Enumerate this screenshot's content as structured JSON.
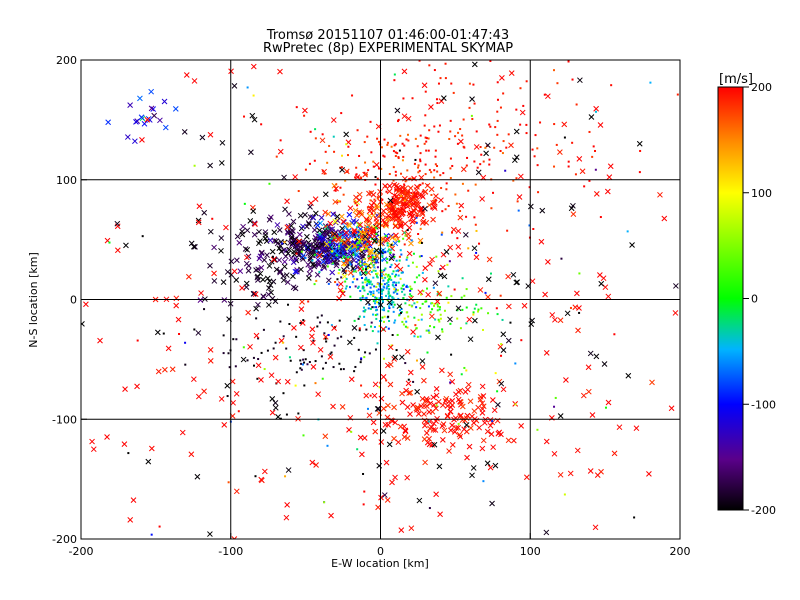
{
  "chart_data": {
    "type": "scatter",
    "title": "Tromsø 20151107 01:46:00-01:47:43",
    "subtitle": "RwPretec (8p) EXPERIMENTAL SKYMAP",
    "xlabel": "E-W location [km]",
    "ylabel": "N-S location [km]",
    "xlim": [
      -200,
      200
    ],
    "ylim": [
      -200,
      200
    ],
    "x_ticks": [
      "-200",
      "-100",
      "0",
      "100",
      "200"
    ],
    "y_ticks": [
      "-200",
      "-100",
      "0",
      "100",
      "200"
    ],
    "grid": true,
    "marker_types": [
      "x",
      "dot"
    ],
    "colorbar": {
      "label": "[m/s]",
      "range": [
        -200,
        200
      ],
      "ticks": [
        "200",
        "100",
        "0",
        "-100",
        "-200"
      ],
      "colormap": [
        "#000000",
        "#5a008a",
        "#0000ff",
        "#00b4ff",
        "#00ff00",
        "#ffff00",
        "#ff8c00",
        "#ff0000"
      ]
    },
    "clusters": [
      {
        "center": [
          -45,
          45
        ],
        "spread": [
          18,
          12
        ],
        "count": 260,
        "velocity": -180,
        "vel_spread": 25,
        "marker": "x"
      },
      {
        "center": [
          -25,
          45
        ],
        "spread": [
          14,
          10
        ],
        "count": 150,
        "velocity": -120,
        "vel_spread": 50,
        "marker": "x"
      },
      {
        "center": [
          -10,
          55
        ],
        "spread": [
          14,
          14
        ],
        "count": 110,
        "velocity": 160,
        "vel_spread": 40,
        "marker": "x"
      },
      {
        "center": [
          15,
          80
        ],
        "spread": [
          12,
          10
        ],
        "count": 150,
        "velocity": 195,
        "vel_spread": 10,
        "marker": "x"
      },
      {
        "center": [
          15,
          100
        ],
        "spread": [
          28,
          22
        ],
        "count": 180,
        "velocity": 185,
        "vel_spread": 20,
        "marker": "dot"
      },
      {
        "center": [
          0,
          5
        ],
        "spread": [
          10,
          14
        ],
        "count": 200,
        "velocity": -50,
        "vel_spread": 20,
        "marker": "dot"
      },
      {
        "center": [
          -5,
          30
        ],
        "spread": [
          20,
          14
        ],
        "count": 180,
        "velocity": 0,
        "vel_spread": 70,
        "marker": "dot"
      },
      {
        "center": [
          30,
          -10
        ],
        "spread": [
          20,
          12
        ],
        "count": 100,
        "velocity": 30,
        "vel_spread": 40,
        "marker": "dot"
      },
      {
        "center": [
          40,
          -95
        ],
        "spread": [
          30,
          15
        ],
        "count": 150,
        "velocity": 195,
        "vel_spread": 10,
        "marker": "x"
      },
      {
        "center": [
          60,
          140
        ],
        "spread": [
          50,
          35
        ],
        "count": 160,
        "velocity": 195,
        "vel_spread": 10,
        "marker": "dot"
      },
      {
        "center": [
          -50,
          -40
        ],
        "spread": [
          30,
          20
        ],
        "count": 90,
        "velocity": -195,
        "vel_spread": 10,
        "marker": "dot"
      },
      {
        "center": [
          -160,
          150
        ],
        "spread": [
          12,
          12
        ],
        "count": 20,
        "velocity": -100,
        "vel_spread": 30,
        "marker": "x"
      },
      {
        "center": [
          -90,
          20
        ],
        "spread": [
          15,
          20
        ],
        "count": 60,
        "velocity": -190,
        "vel_spread": 15,
        "marker": "x"
      },
      {
        "center": [
          0,
          0
        ],
        "spread": [
          110,
          110
        ],
        "count": 320,
        "velocity": 200,
        "vel_spread": 8,
        "marker": "x"
      },
      {
        "center": [
          0,
          0
        ],
        "spread": [
          110,
          110
        ],
        "count": 140,
        "velocity": -200,
        "vel_spread": 8,
        "marker": "x"
      },
      {
        "center": [
          0,
          0
        ],
        "spread": [
          90,
          90
        ],
        "count": 160,
        "velocity": 0,
        "vel_spread": 180,
        "marker": "dot"
      }
    ]
  }
}
